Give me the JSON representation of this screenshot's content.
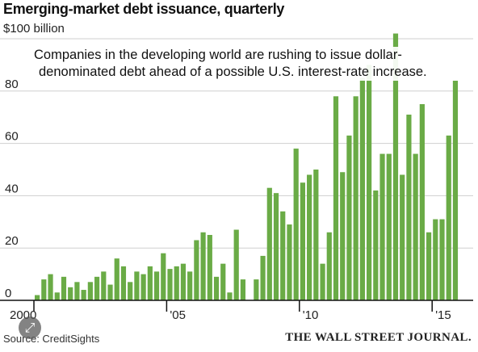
{
  "header": {
    "title": "Emerging-market debt issuance, quarterly",
    "unit_label": "$100 billion"
  },
  "annotation": {
    "line1": "Companies in the developing world are rushing to issue dollar-",
    "line2": "denominated debt ahead of a possible U.S. interest-rate increase."
  },
  "footer": {
    "source": "Source: CreditSights",
    "publisher": "THE WALL STREET JOURNAL."
  },
  "overlay": {
    "expand_icon": "expand-arrows-icon",
    "expand_glyph": "⤢"
  },
  "colors": {
    "bar": "#6aab46",
    "grid": "#cfcfcf",
    "axis": "#111111"
  },
  "chart_data": {
    "type": "bar",
    "title": "Emerging-market debt issuance, quarterly",
    "ylabel": "",
    "xlabel": "",
    "ylim": [
      0,
      100
    ],
    "yticks": [
      0,
      20,
      40,
      60,
      80,
      100
    ],
    "ytick_labels": [
      "0",
      "20",
      "40",
      "60",
      "80",
      "$100 billion"
    ],
    "xtick_labels": [
      {
        "label": "2000",
        "quarter_index": 0
      },
      {
        "label": "'05",
        "quarter_index": 20
      },
      {
        "label": "'10",
        "quarter_index": 40
      },
      {
        "label": "'15",
        "quarter_index": 60
      }
    ],
    "grid": true,
    "categories": [
      "2000 Q1",
      "2000 Q2",
      "2000 Q3",
      "2000 Q4",
      "2001 Q1",
      "2001 Q2",
      "2001 Q3",
      "2001 Q4",
      "2002 Q1",
      "2002 Q2",
      "2002 Q3",
      "2002 Q4",
      "2003 Q1",
      "2003 Q2",
      "2003 Q3",
      "2003 Q4",
      "2004 Q1",
      "2004 Q2",
      "2004 Q3",
      "2004 Q4",
      "2005 Q1",
      "2005 Q2",
      "2005 Q3",
      "2005 Q4",
      "2006 Q1",
      "2006 Q2",
      "2006 Q3",
      "2006 Q4",
      "2007 Q1",
      "2007 Q2",
      "2007 Q3",
      "2007 Q4",
      "2008 Q1",
      "2008 Q2",
      "2008 Q3",
      "2008 Q4",
      "2009 Q1",
      "2009 Q2",
      "2009 Q3",
      "2009 Q4",
      "2010 Q1",
      "2010 Q2",
      "2010 Q3",
      "2010 Q4",
      "2011 Q1",
      "2011 Q2",
      "2011 Q3",
      "2011 Q4",
      "2012 Q1",
      "2012 Q2",
      "2012 Q3",
      "2012 Q4",
      "2013 Q1",
      "2013 Q2",
      "2013 Q3",
      "2013 Q4",
      "2014 Q1",
      "2014 Q2",
      "2014 Q3",
      "2014 Q4",
      "2015 Q1",
      "2015 Q2",
      "2015 Q3",
      "2015 Q4",
      "2016 Q1",
      "2016 Q2"
    ],
    "values": [
      2,
      8,
      10,
      3,
      9,
      5,
      7,
      4,
      7,
      9,
      11,
      6,
      16,
      13,
      7,
      11,
      10,
      13,
      11,
      18,
      12,
      13,
      14,
      11,
      23,
      26,
      25,
      9,
      14,
      3,
      27,
      8,
      0,
      8,
      17,
      43,
      41,
      34,
      29,
      58,
      45,
      48,
      50,
      14,
      26,
      78,
      49,
      63,
      78,
      85,
      90,
      42,
      56,
      56,
      102,
      48,
      71,
      56,
      75,
      26,
      31,
      31,
      63,
      84,
      0,
      0
    ]
  }
}
